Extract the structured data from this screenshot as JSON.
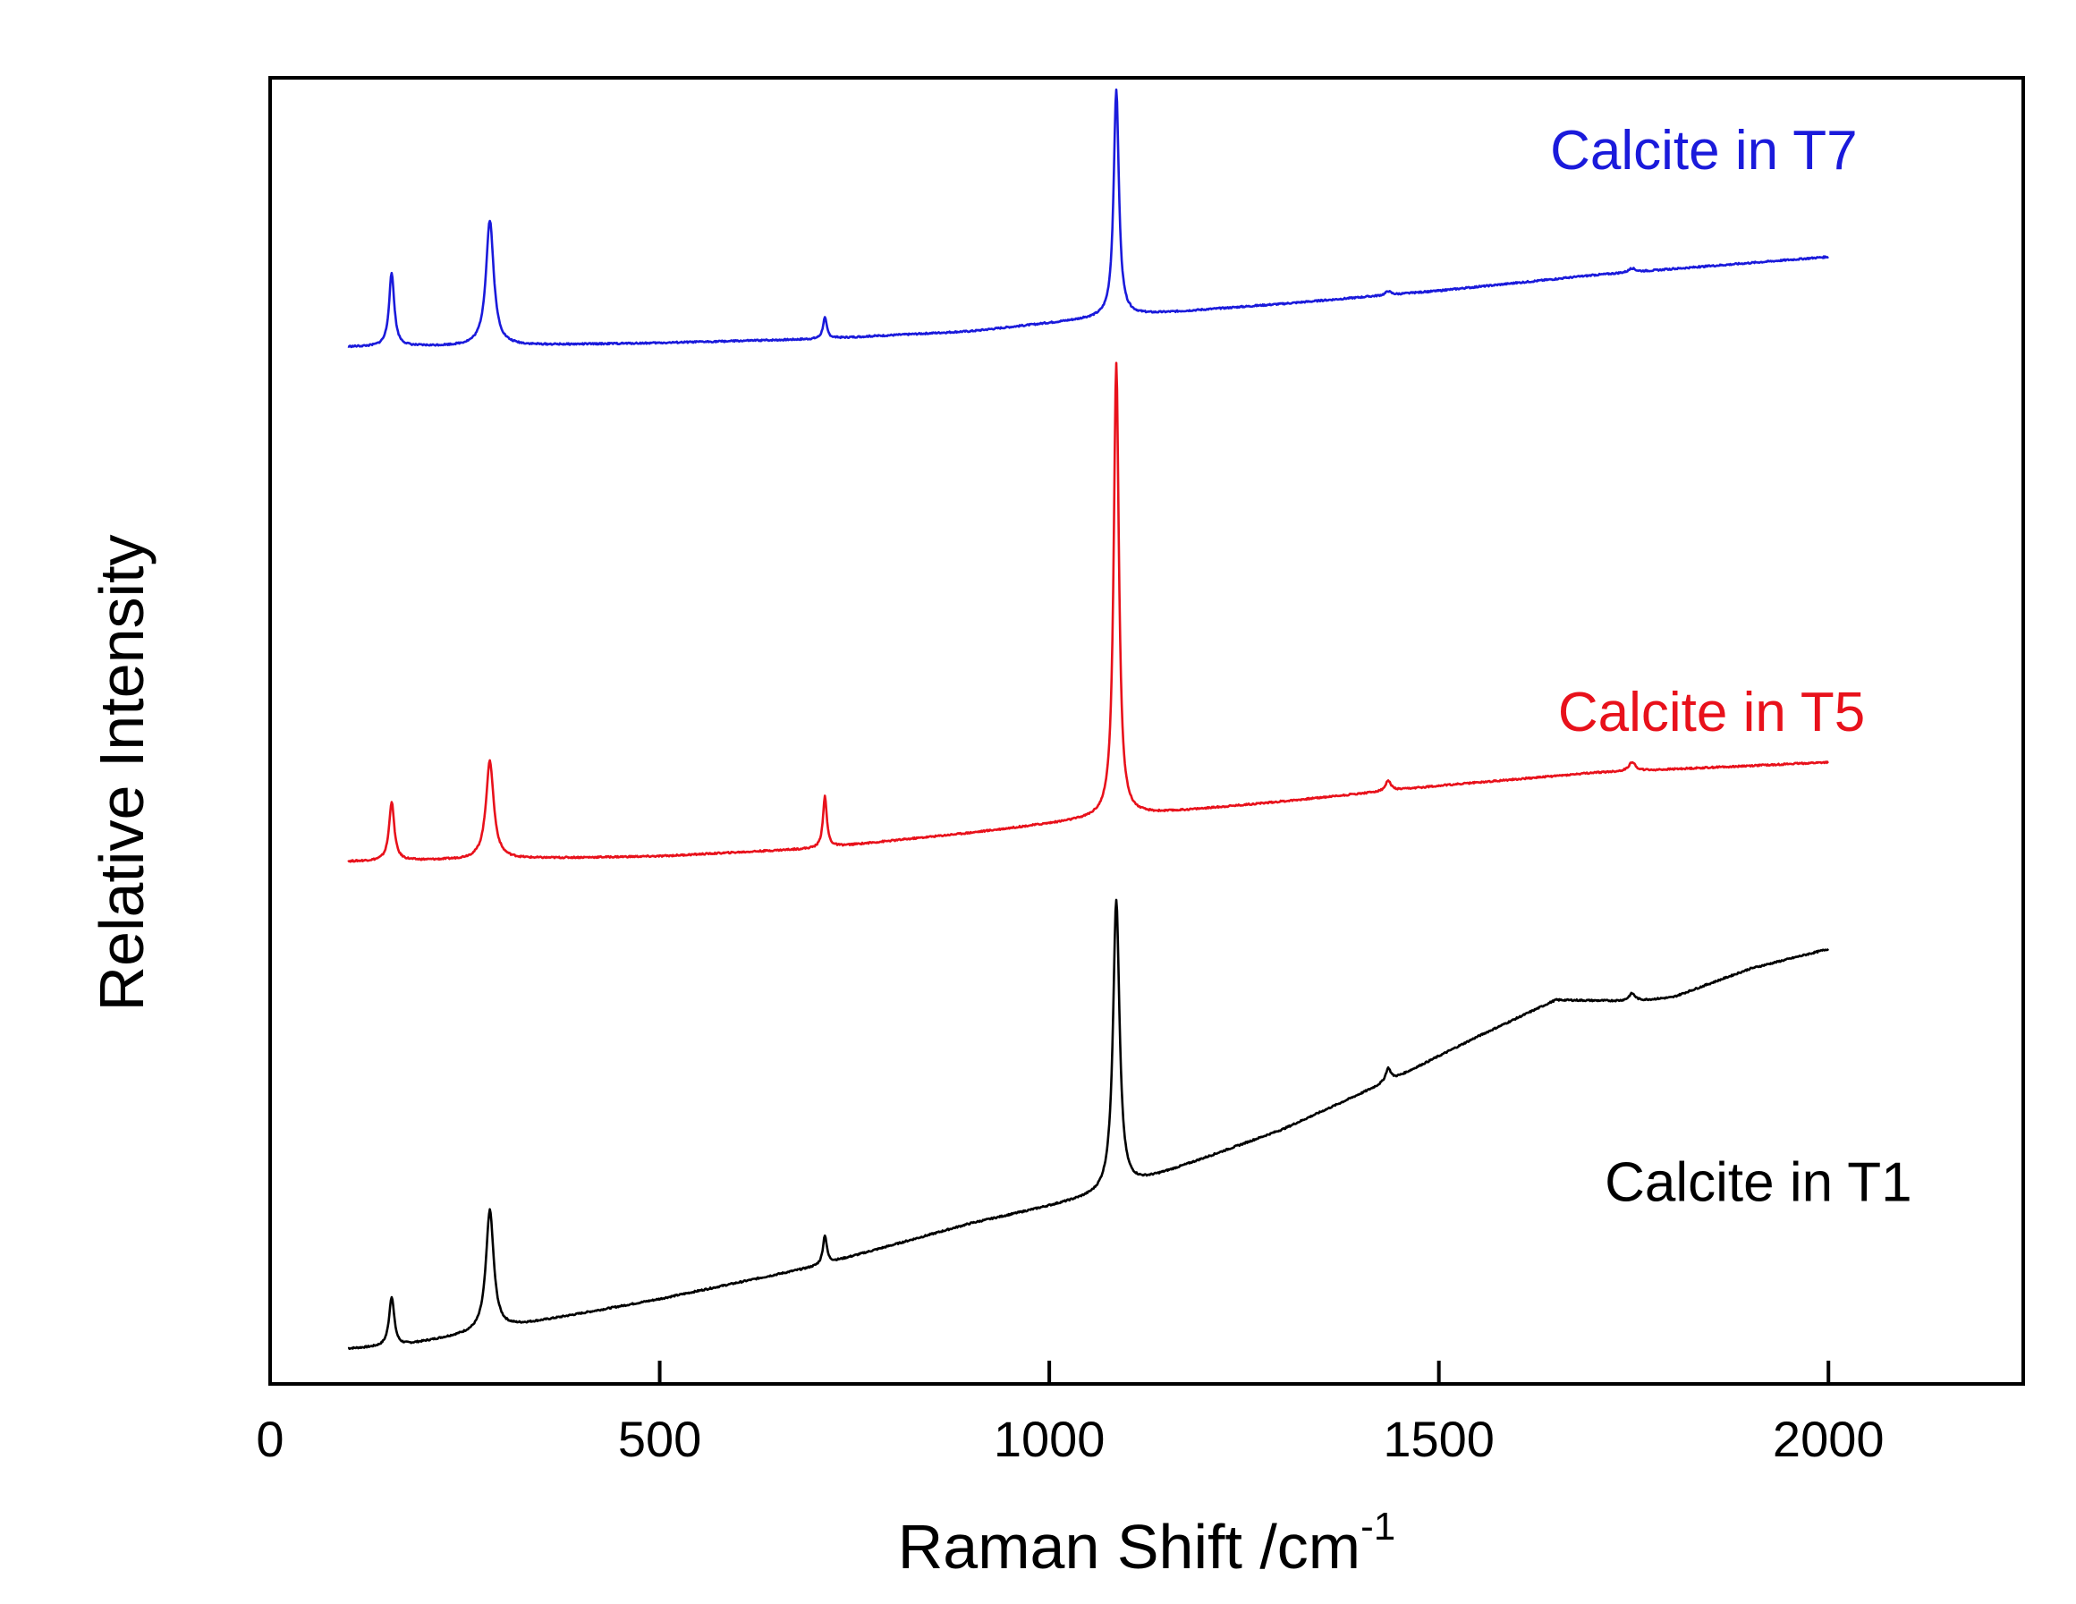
{
  "chart_data": {
    "type": "line",
    "title": "",
    "xlabel": "Raman Shift /cm",
    "xlabel_superscript": "-1",
    "ylabel": "Relative Intensity",
    "xlim": [
      0,
      2250
    ],
    "ylim": [
      0,
      100
    ],
    "x_ticks": [
      0,
      500,
      1000,
      1500,
      2000
    ],
    "y_ticks": [],
    "grid": false,
    "legend": "inline labels",
    "series": [
      {
        "name": "Calcite in T1",
        "color": "#000000",
        "label_at": [
          1910,
          14
        ],
        "baseline": [
          [
            100,
            2.7
          ],
          [
            165,
            2.9
          ],
          [
            300,
            4.3
          ],
          [
            500,
            6.5
          ],
          [
            700,
            9.0
          ],
          [
            900,
            12.3
          ],
          [
            1060,
            14.4
          ],
          [
            1100,
            15.1
          ],
          [
            1300,
            19.5
          ],
          [
            1450,
            23.6
          ],
          [
            1550,
            26.6
          ],
          [
            1650,
            29.4
          ],
          [
            1750,
            29.3
          ],
          [
            1800,
            29.6
          ],
          [
            1900,
            31.8
          ],
          [
            2000,
            33.3
          ]
        ],
        "peaks": [
          [
            156,
            3.8,
            4
          ],
          [
            282,
            9.2,
            6
          ],
          [
            712,
            2.2,
            3
          ],
          [
            1086,
            22.2,
            5
          ],
          [
            1435,
            1.0,
            4
          ],
          [
            1748,
            0.6,
            5
          ]
        ]
      },
      {
        "name": "Calcite in T5",
        "color": "#e8111b",
        "label_at": [
          1850,
          50
        ],
        "baseline": [
          [
            100,
            40.0
          ],
          [
            300,
            40.2
          ],
          [
            500,
            40.4
          ],
          [
            700,
            41.0
          ],
          [
            900,
            42.2
          ],
          [
            1060,
            43.3
          ],
          [
            1100,
            43.5
          ],
          [
            1300,
            44.6
          ],
          [
            1500,
            45.8
          ],
          [
            1700,
            46.8
          ],
          [
            2000,
            47.6
          ]
        ],
        "peaks": [
          [
            156,
            4.5,
            4
          ],
          [
            282,
            7.5,
            6
          ],
          [
            712,
            3.9,
            3
          ],
          [
            1086,
            34.7,
            4
          ],
          [
            1435,
            0.8,
            4
          ],
          [
            1748,
            0.7,
            5
          ]
        ]
      },
      {
        "name": "Calcite in T7",
        "color": "#1a1adb",
        "label_at": [
          1840,
          93
        ],
        "baseline": [
          [
            100,
            79.4
          ],
          [
            300,
            79.5
          ],
          [
            500,
            79.7
          ],
          [
            700,
            80.0
          ],
          [
            900,
            80.6
          ],
          [
            1060,
            81.6
          ],
          [
            1100,
            81.8
          ],
          [
            1300,
            82.7
          ],
          [
            1500,
            83.7
          ],
          [
            1700,
            84.9
          ],
          [
            2000,
            86.3
          ]
        ],
        "peaks": [
          [
            156,
            5.6,
            4
          ],
          [
            282,
            9.6,
            6
          ],
          [
            712,
            1.6,
            3
          ],
          [
            1086,
            17.4,
            4
          ],
          [
            1435,
            0.3,
            4
          ],
          [
            1748,
            0.3,
            5
          ]
        ]
      }
    ]
  }
}
